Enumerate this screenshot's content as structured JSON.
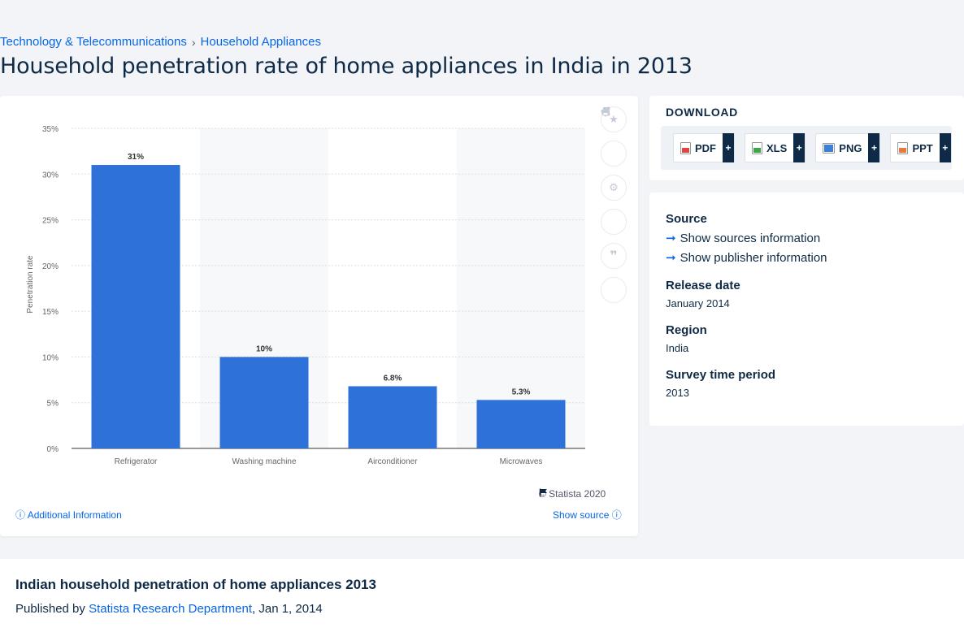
{
  "breadcrumb": {
    "items": [
      "Technology & Telecommunications",
      "Household Appliances"
    ],
    "separator": "›"
  },
  "page_title": "Household penetration rate of home appliances in India in 2013",
  "chart_data": {
    "type": "bar",
    "categories": [
      "Refrigerator",
      "Washing machine",
      "Airconditioner",
      "Microwaves"
    ],
    "values": [
      31,
      10,
      6.8,
      5.3
    ],
    "data_labels": [
      "31%",
      "10%",
      "6.8%",
      "5.3%"
    ],
    "ylabel": "Penetration rate",
    "ylim": [
      0,
      35
    ],
    "yticks": [
      "0%",
      "5%",
      "10%",
      "15%",
      "20%",
      "25%",
      "30%",
      "35%"
    ],
    "grid": true,
    "bar_color": "#2e72d9"
  },
  "chart_footer": {
    "copyright": "© Statista 2020",
    "additional_info": "Additional Information",
    "show_source": "Show source"
  },
  "tools": [
    "star-icon",
    "bell-icon",
    "gear-icon",
    "share-icon",
    "quote-icon",
    "print-icon"
  ],
  "download": {
    "title": "DOWNLOAD",
    "buttons": [
      {
        "label": "PDF",
        "color": "#e04545"
      },
      {
        "label": "XLS",
        "color": "#3aa845"
      },
      {
        "label": "PNG",
        "color": "#3b7fd9"
      },
      {
        "label": "PPT",
        "color": "#e8793a"
      }
    ],
    "plus": "+"
  },
  "info": {
    "source_heading": "Source",
    "sources_link": "Show sources information",
    "publisher_link": "Show publisher information",
    "release_heading": "Release date",
    "release_value": "January 2014",
    "region_heading": "Region",
    "region_value": "India",
    "survey_heading": "Survey time period",
    "survey_value": "2013"
  },
  "bottom": {
    "title": "Indian household penetration of home appliances 2013",
    "published_prefix": "Published by",
    "author": "Statista Research Department",
    "date": ", Jan 1, 2014"
  }
}
